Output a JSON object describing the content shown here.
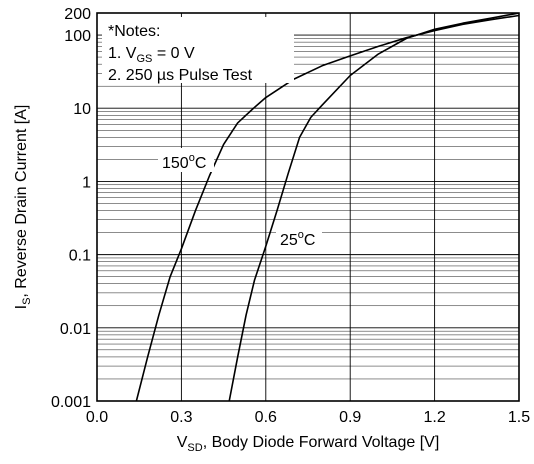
{
  "chart_data": {
    "type": "line",
    "xlabel": {
      "main": "V",
      "sub": "SD",
      "rest": ", Body Diode Forward Voltage [V]"
    },
    "ylabel": {
      "main": "I",
      "sub": "S",
      "rest": ", Reverse Drain Current [A]"
    },
    "xlim": [
      0.0,
      1.5
    ],
    "ylim": [
      0.001,
      200
    ],
    "y_scale": "log",
    "x_ticks": [
      {
        "value": 0.0,
        "label": "0.0"
      },
      {
        "value": 0.3,
        "label": "0.3"
      },
      {
        "value": 0.6,
        "label": "0.6"
      },
      {
        "value": 0.9,
        "label": "0.9"
      },
      {
        "value": 1.2,
        "label": "1.2"
      },
      {
        "value": 1.5,
        "label": "1.5"
      }
    ],
    "y_ticks": [
      {
        "value": 0.001,
        "label": "0.001"
      },
      {
        "value": 0.01,
        "label": "0.01"
      },
      {
        "value": 0.1,
        "label": "0.1"
      },
      {
        "value": 1,
        "label": "1"
      },
      {
        "value": 10,
        "label": "10"
      },
      {
        "value": 100,
        "label": "100"
      },
      {
        "value": 200,
        "label": "200"
      }
    ],
    "grid": true,
    "notes": {
      "title": "*Notes:",
      "line1": {
        "prefix": "1. V",
        "sub": "GS",
        "suffix": " = 0 V"
      },
      "line2": "2. 250 µs Pulse Test"
    },
    "series": [
      {
        "name": "150°C",
        "label": {
          "num": "150",
          "deg": "o",
          "unit": "C"
        },
        "color": "#000000",
        "points": [
          [
            0.14,
            0.001
          ],
          [
            0.18,
            0.004
          ],
          [
            0.22,
            0.015
          ],
          [
            0.26,
            0.05
          ],
          [
            0.3,
            0.12
          ],
          [
            0.35,
            0.4
          ],
          [
            0.4,
            1.2
          ],
          [
            0.45,
            3.2
          ],
          [
            0.5,
            6.3
          ],
          [
            0.55,
            9.5
          ],
          [
            0.6,
            14
          ],
          [
            0.7,
            25
          ],
          [
            0.8,
            38
          ],
          [
            0.9,
            52
          ],
          [
            1.0,
            70
          ],
          [
            1.1,
            92
          ],
          [
            1.2,
            115
          ],
          [
            1.3,
            140
          ],
          [
            1.4,
            162
          ],
          [
            1.5,
            185
          ]
        ]
      },
      {
        "name": "25°C",
        "label": {
          "num": "25",
          "deg": "o",
          "unit": "C"
        },
        "color": "#000000",
        "points": [
          [
            0.47,
            0.001
          ],
          [
            0.5,
            0.004
          ],
          [
            0.53,
            0.015
          ],
          [
            0.56,
            0.045
          ],
          [
            0.6,
            0.13
          ],
          [
            0.64,
            0.4
          ],
          [
            0.68,
            1.3
          ],
          [
            0.72,
            4
          ],
          [
            0.76,
            7.5
          ],
          [
            0.8,
            11
          ],
          [
            0.9,
            28
          ],
          [
            1.0,
            55
          ],
          [
            1.1,
            90
          ],
          [
            1.2,
            120
          ],
          [
            1.3,
            145
          ],
          [
            1.4,
            170
          ],
          [
            1.5,
            200
          ]
        ]
      }
    ]
  }
}
